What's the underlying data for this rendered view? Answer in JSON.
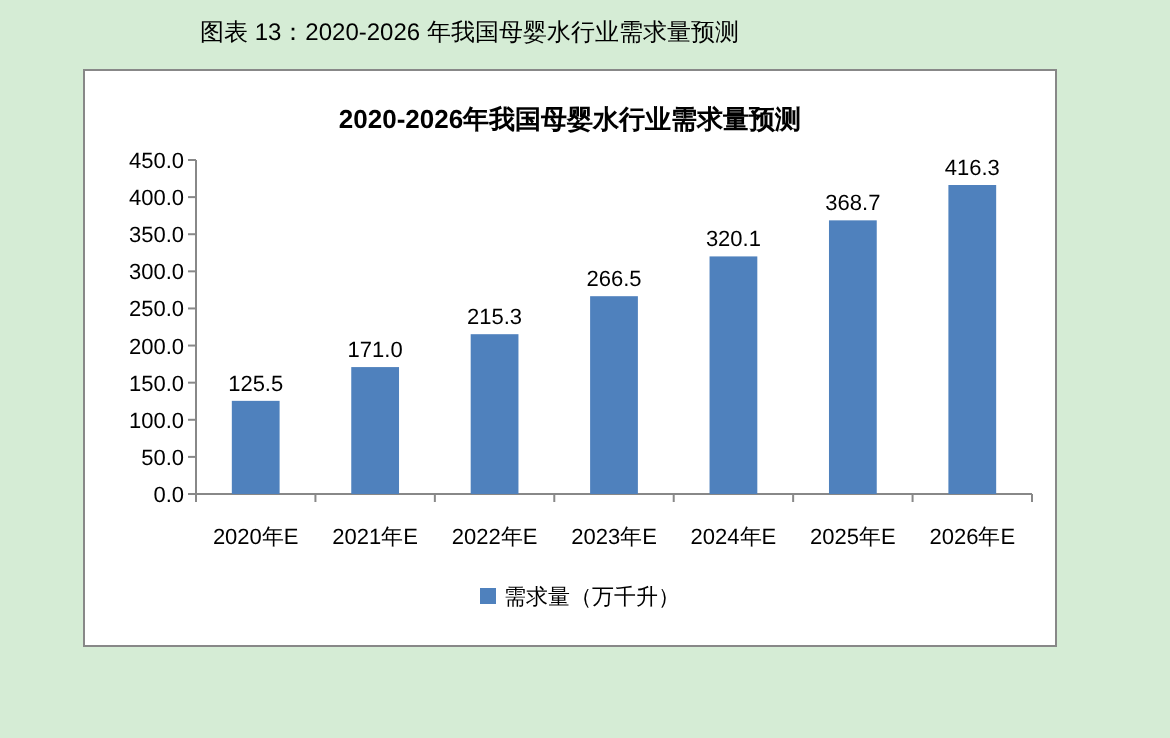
{
  "chart_data": {
    "type": "bar",
    "title": "2020-2026年我国母婴水行业需求量预测",
    "annotations": [
      "图表 13：2020-2026 年我国母婴水行业需求量预测"
    ],
    "categories": [
      "2020年E",
      "2021年E",
      "2022年E",
      "2023年E",
      "2024年E",
      "2025年E",
      "2026年E"
    ],
    "series": [
      {
        "name": "需求量（万千升）",
        "color": "#4f81bd",
        "values": [
          125.5,
          171.0,
          215.3,
          266.5,
          320.1,
          368.7,
          416.3
        ],
        "value_labels": [
          "125.5",
          "171.0",
          "215.3",
          "266.5",
          "320.1",
          "368.7",
          "416.3"
        ]
      }
    ],
    "ylim": [
      0,
      450
    ],
    "yticks": [
      {
        "value": 0,
        "label": "0.0"
      },
      {
        "value": 50,
        "label": "50.0"
      },
      {
        "value": 100,
        "label": "100.0"
      },
      {
        "value": 150,
        "label": "150.0"
      },
      {
        "value": 200,
        "label": "200.0"
      },
      {
        "value": 250,
        "label": "250.0"
      },
      {
        "value": 300,
        "label": "300.0"
      },
      {
        "value": 350,
        "label": "350.0"
      },
      {
        "value": 400,
        "label": "400.0"
      },
      {
        "value": 450,
        "label": "450.0"
      }
    ],
    "legend": "bottom"
  }
}
